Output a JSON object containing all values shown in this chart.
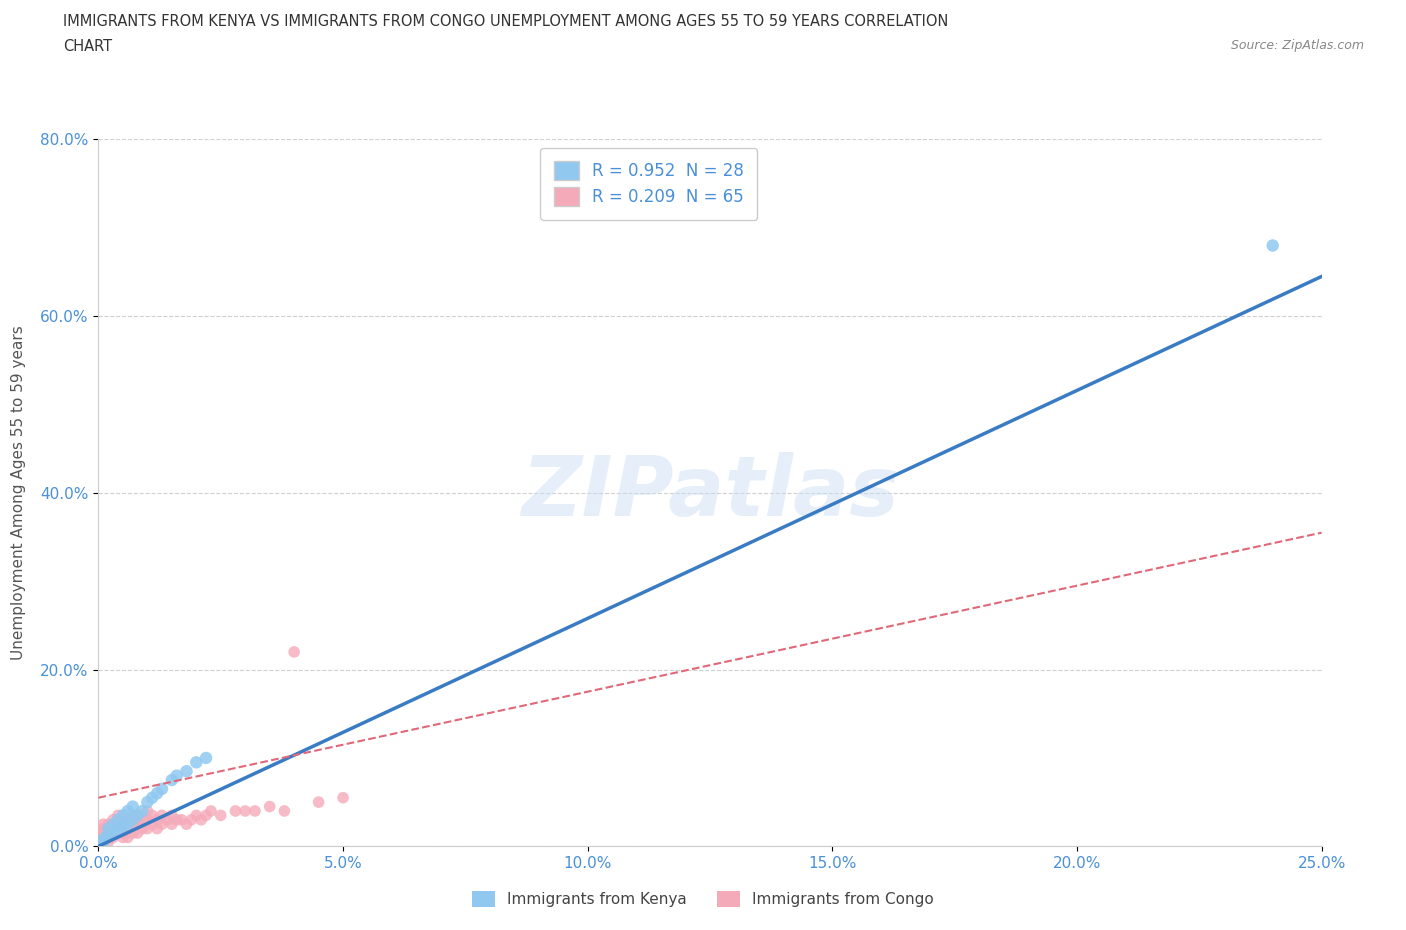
{
  "title_line1": "IMMIGRANTS FROM KENYA VS IMMIGRANTS FROM CONGO UNEMPLOYMENT AMONG AGES 55 TO 59 YEARS CORRELATION",
  "title_line2": "CHART",
  "source": "Source: ZipAtlas.com",
  "ylabel": "Unemployment Among Ages 55 to 59 years",
  "xlim": [
    0.0,
    0.25
  ],
  "ylim": [
    0.0,
    0.8
  ],
  "xtick_labels": [
    "0.0%",
    "5.0%",
    "10.0%",
    "15.0%",
    "20.0%",
    "25.0%"
  ],
  "xtick_vals": [
    0.0,
    0.05,
    0.1,
    0.15,
    0.2,
    0.25
  ],
  "ytick_labels": [
    "0.0%",
    "20.0%",
    "40.0%",
    "60.0%",
    "80.0%"
  ],
  "ytick_vals": [
    0.0,
    0.2,
    0.4,
    0.6,
    0.8
  ],
  "kenya_color": "#90C8F0",
  "congo_color": "#F5AABA",
  "kenya_R": 0.952,
  "kenya_N": 28,
  "congo_R": 0.209,
  "congo_N": 65,
  "kenya_line_color": "#3A7CC4",
  "congo_line_color": "#E06878",
  "kenya_line": [
    0.0,
    0.0,
    0.25,
    0.645
  ],
  "congo_line": [
    0.0,
    0.055,
    0.25,
    0.355
  ],
  "watermark": "ZIPatlas",
  "legend_label_kenya": "Immigrants from Kenya",
  "legend_label_congo": "Immigrants from Congo",
  "kenya_x": [
    0.0005,
    0.001,
    0.001,
    0.0015,
    0.002,
    0.002,
    0.003,
    0.003,
    0.004,
    0.004,
    0.005,
    0.005,
    0.006,
    0.006,
    0.007,
    0.007,
    0.008,
    0.009,
    0.01,
    0.011,
    0.012,
    0.013,
    0.015,
    0.016,
    0.018,
    0.02,
    0.022,
    0.24
  ],
  "kenya_y": [
    0.002,
    0.005,
    0.008,
    0.01,
    0.012,
    0.02,
    0.015,
    0.025,
    0.018,
    0.03,
    0.022,
    0.035,
    0.025,
    0.04,
    0.03,
    0.045,
    0.035,
    0.04,
    0.05,
    0.055,
    0.06,
    0.065,
    0.075,
    0.08,
    0.085,
    0.095,
    0.1,
    0.68
  ],
  "congo_x": [
    0.0,
    0.0,
    0.0,
    0.0005,
    0.0005,
    0.001,
    0.001,
    0.001,
    0.001,
    0.0015,
    0.0015,
    0.002,
    0.002,
    0.002,
    0.003,
    0.003,
    0.003,
    0.004,
    0.004,
    0.004,
    0.005,
    0.005,
    0.005,
    0.005,
    0.005,
    0.006,
    0.006,
    0.006,
    0.007,
    0.007,
    0.007,
    0.008,
    0.008,
    0.008,
    0.009,
    0.009,
    0.01,
    0.01,
    0.01,
    0.011,
    0.011,
    0.012,
    0.012,
    0.013,
    0.013,
    0.014,
    0.015,
    0.015,
    0.016,
    0.017,
    0.018,
    0.019,
    0.02,
    0.021,
    0.022,
    0.023,
    0.025,
    0.028,
    0.03,
    0.032,
    0.035,
    0.038,
    0.04,
    0.045,
    0.05
  ],
  "congo_y": [
    0.0,
    0.005,
    0.01,
    0.005,
    0.015,
    0.005,
    0.01,
    0.02,
    0.025,
    0.01,
    0.02,
    0.005,
    0.015,
    0.025,
    0.01,
    0.02,
    0.03,
    0.015,
    0.025,
    0.035,
    0.01,
    0.015,
    0.02,
    0.025,
    0.03,
    0.01,
    0.02,
    0.03,
    0.015,
    0.025,
    0.035,
    0.015,
    0.025,
    0.035,
    0.02,
    0.03,
    0.02,
    0.03,
    0.04,
    0.025,
    0.035,
    0.02,
    0.03,
    0.025,
    0.035,
    0.03,
    0.025,
    0.035,
    0.03,
    0.03,
    0.025,
    0.03,
    0.035,
    0.03,
    0.035,
    0.04,
    0.035,
    0.04,
    0.04,
    0.04,
    0.045,
    0.04,
    0.22,
    0.05,
    0.055
  ]
}
